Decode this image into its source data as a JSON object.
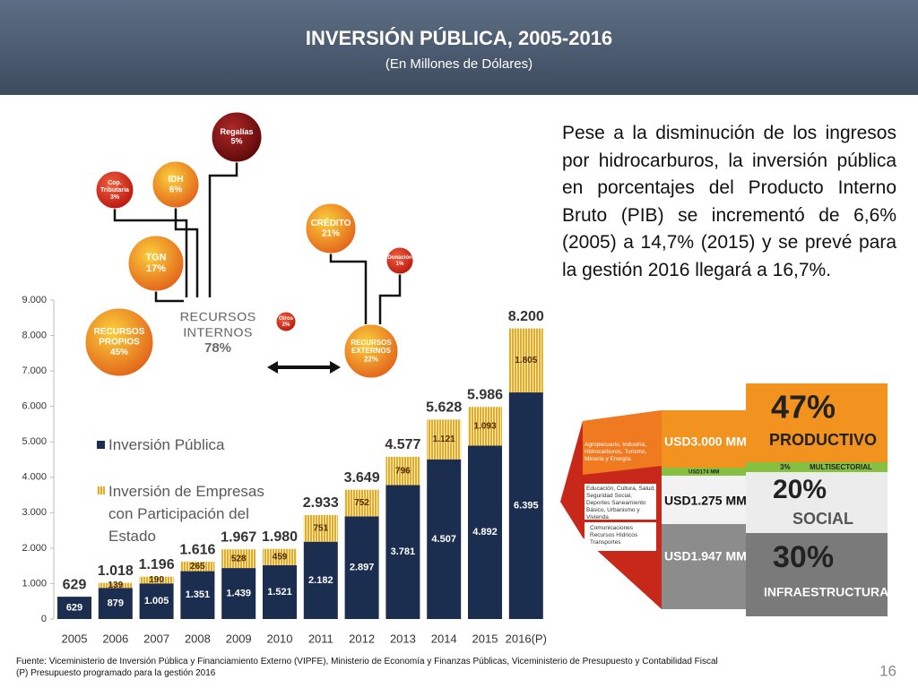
{
  "header": {
    "title": "INVERSIÓN PÚBLICA, 2005-2016",
    "subtitle": "(En Millones de Dólares)"
  },
  "chart_data": {
    "type": "bar",
    "stacked": true,
    "categories": [
      "2005",
      "2006",
      "2007",
      "2008",
      "2009",
      "2010",
      "2011",
      "2012",
      "2013",
      "2014",
      "2015",
      "2016(P)"
    ],
    "series": [
      {
        "name": "Inversión Pública",
        "color": "#1c2e50",
        "values": [
          629,
          879,
          1005,
          1351,
          1439,
          1521,
          2182,
          2897,
          3781,
          4507,
          4892,
          6395
        ],
        "value_labels": [
          "629",
          "879",
          "1.005",
          "1.351",
          "1.439",
          "1.521",
          "2.182",
          "2.897",
          "3.781",
          "4.507",
          "4.892",
          "6.395"
        ]
      },
      {
        "name": "Inversión de Empresas con Participación del Estado",
        "color": "#e6a92a",
        "values": [
          0,
          139,
          190,
          265,
          528,
          459,
          751,
          752,
          796,
          1121,
          1093,
          1805
        ],
        "value_labels": [
          null,
          "139",
          "190",
          "265",
          "528",
          "459",
          "751",
          "752",
          "796",
          "1.121",
          "1.093",
          "1.805"
        ]
      }
    ],
    "totals": {
      "values": [
        629,
        1018,
        1196,
        1616,
        1967,
        1980,
        2933,
        3649,
        4577,
        5628,
        5986,
        8200
      ],
      "value_labels": [
        "629",
        "1.018",
        "1.196",
        "1.616",
        "1.967",
        "1.980",
        "2.933",
        "3.649",
        "4.577",
        "5.628",
        "5.986",
        "8.200"
      ]
    },
    "ylim": [
      0,
      9000
    ],
    "yticks": [
      0,
      {
        "value": 1000,
        "label": "1.000"
      },
      {
        "value": 2000,
        "label": "2.000"
      },
      {
        "value": 3000,
        "label": "3.000"
      },
      {
        "value": 4000,
        "label": "4.000"
      },
      {
        "value": 5000,
        "label": "5.000"
      },
      {
        "value": 6000,
        "label": "6.000"
      },
      {
        "value": 7000,
        "label": "7.000"
      },
      {
        "value": 8000,
        "label": "8.000"
      },
      {
        "value": 9000,
        "label": "9.000"
      }
    ],
    "legend": "left",
    "grid": false
  },
  "funding_diagram": {
    "nodes": [
      {
        "lines": [
          "Regalías"
        ],
        "value": "5%"
      },
      {
        "lines": [
          "IDH"
        ],
        "value": "6%"
      },
      {
        "lines": [
          "Cop.",
          "Tributaria"
        ],
        "value": "3%"
      },
      {
        "lines": [
          "TGN"
        ],
        "value": "17%"
      },
      {
        "lines": [
          "RECURSOS",
          "PROPIOS"
        ],
        "value": "45%"
      },
      {
        "lines": [
          "RECURSOS",
          "INTERNOS"
        ],
        "value": "78%"
      },
      {
        "lines": [
          "Otros"
        ],
        "value": "2%"
      },
      {
        "lines": [
          "CRÉDITO"
        ],
        "value": "21%"
      },
      {
        "lines": [
          "Donación"
        ],
        "value": "1%"
      },
      {
        "lines": [
          "RECURSOS",
          "EXTERNOS"
        ],
        "value": "22%"
      }
    ]
  },
  "paragraph": "Pese a la disminución de los ingresos por hidrocarburos, la inversión pública en porcentajes del Producto Interno Bruto (PIB) se incrementó  de 6,6% (2005) a 14,7% (2015) y se prevé para la gestión 2016 llegará a 16,7%.",
  "sector_infographic": {
    "rows": [
      {
        "sectors": "Agropecuario, Industria, Hidrocarburos, Turismo, Minería y Energía.",
        "amount": "USD3.000 MM",
        "share": "47%",
        "name": "PRODUCTIVO"
      },
      {
        "amount": "USD174 MM",
        "share": "3%",
        "name": "MULTISECTORIAL"
      },
      {
        "sectors": "Educación, Cultura, Salud, Seguridad Social, Deportes Saneamiento Básico, Urbanismo y Vivienda",
        "amount": "USD1.275 MM",
        "share": "20%",
        "name": "SOCIAL"
      },
      {
        "sectors": "Comunicaciones Recursos Hídricos Transportes",
        "amount": "USD1.947 MM",
        "share": "30%",
        "name": "INFRAESTRUCTURA"
      }
    ]
  },
  "footer": {
    "source": "Fuente: Viceministerio de Inversión Pública y Financiamiento Externo (VIPFE), Ministerio de Economía y Finanzas Públicas, Viceministerio de Presupuesto y Contabilidad Fiscal",
    "note": "(P) Presupuesto programado para la gestión 2016"
  },
  "page_number": "16"
}
